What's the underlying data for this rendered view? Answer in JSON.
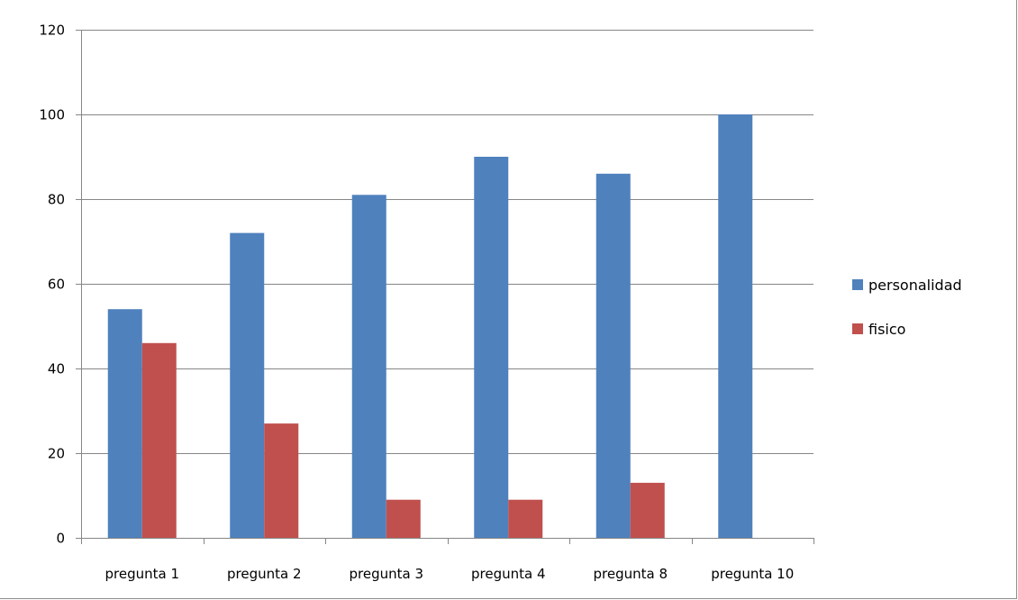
{
  "chart_data": {
    "type": "bar",
    "title": "",
    "xlabel": "",
    "ylabel": "",
    "categories": [
      "pregunta 1",
      "pregunta 2",
      "pregunta 3",
      "pregunta 4",
      "pregunta 8",
      "pregunta 10"
    ],
    "series": [
      {
        "name": "personalidad",
        "color": "#4f81bd",
        "values": [
          54,
          72,
          81,
          90,
          86,
          100
        ]
      },
      {
        "name": "fisico",
        "color": "#c0504d",
        "values": [
          46,
          27,
          9,
          9,
          13,
          0
        ]
      }
    ],
    "ylim": [
      0,
      120
    ],
    "yticks": [
      0,
      20,
      40,
      60,
      80,
      100,
      120
    ],
    "grid": true,
    "legend_position": "right"
  }
}
